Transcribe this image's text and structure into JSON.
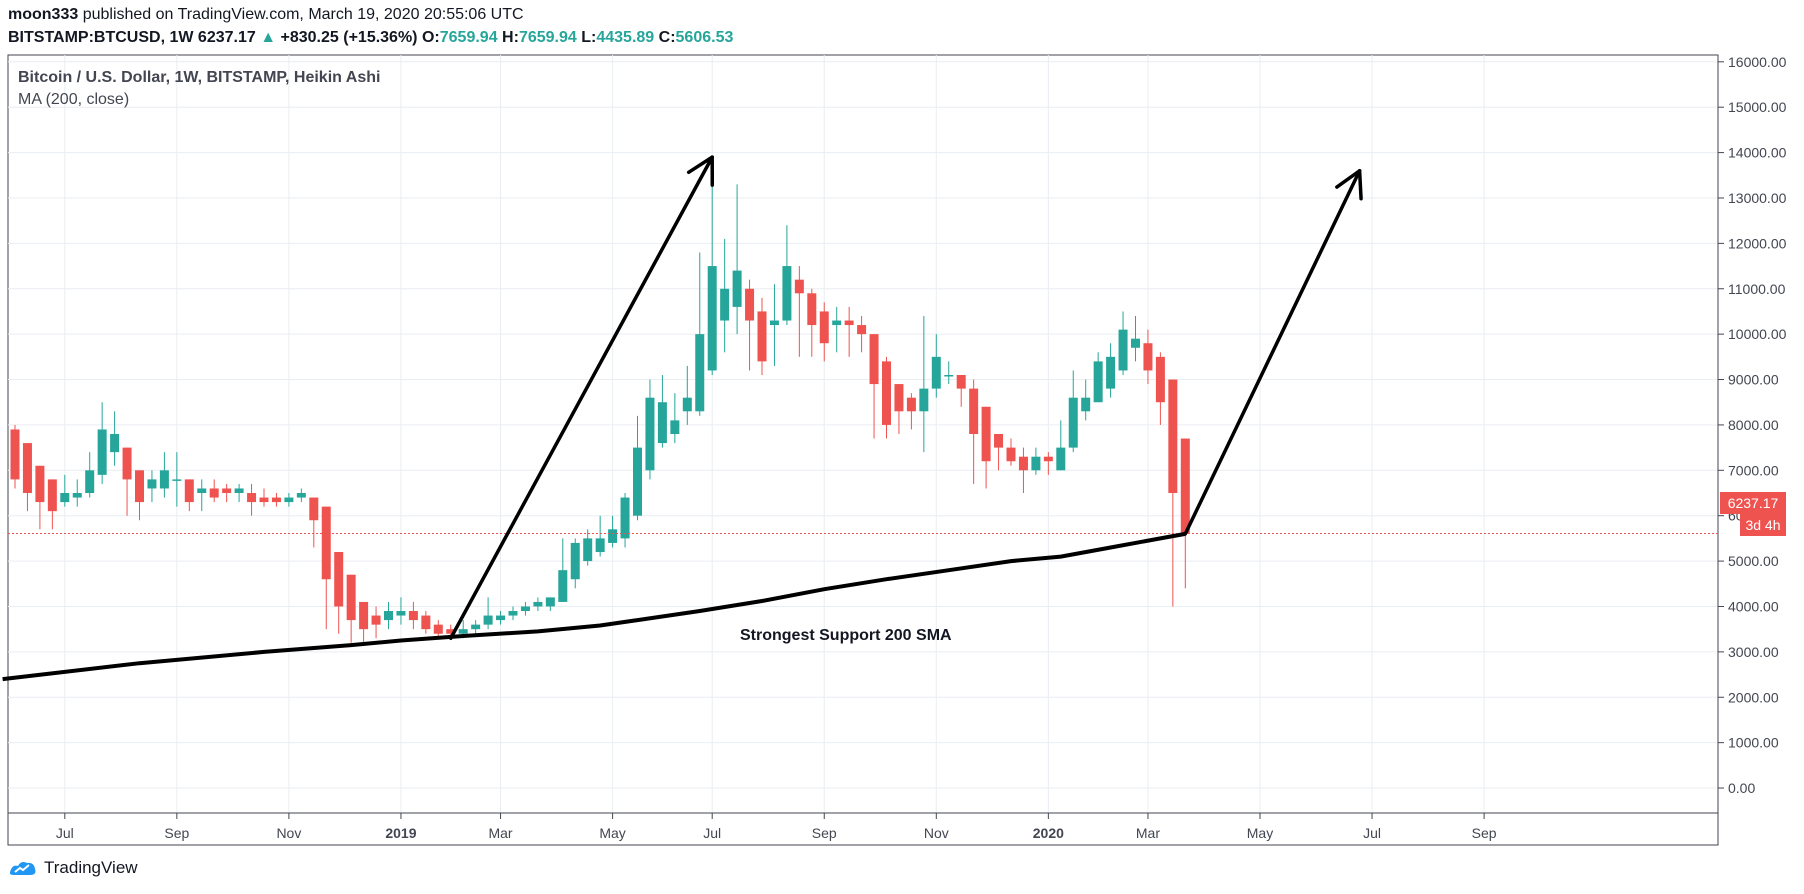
{
  "header": {
    "publisher": "moon333",
    "published_text": " published on TradingView.com, March 19, 2020 20:55:06 UTC",
    "symbol": "BITSTAMP:BTCUSD, 1W",
    "price": "6237.17",
    "change": "+830.25 (+15.36%)",
    "o_label": "O:",
    "o_value": "7659.94",
    "h_label": "H:",
    "h_value": "7659.94",
    "l_label": "L:",
    "l_value": "4435.89",
    "c_label": "C:",
    "c_value": "5606.53"
  },
  "legend": {
    "title": "Bitcoin / U.S. Dollar, 1W, BITSTAMP, Heikin Ashi",
    "ma": "MA (200, close)"
  },
  "price_label": {
    "price": "6237.17",
    "countdown": "3d 4h"
  },
  "annotation": "Strongest Support 200 SMA",
  "footer": {
    "brand": "TradingView"
  },
  "colors": {
    "up": "#26a69a",
    "down": "#ef5350",
    "ma": "#000000",
    "grid": "#e9eef2",
    "price_line": "#ef5350"
  },
  "chart_data": {
    "type": "candlestick",
    "ylim": [
      -550,
      16150
    ],
    "y_ticks": [
      "16000.00",
      "15000.00",
      "14000.00",
      "13000.00",
      "12000.00",
      "11000.00",
      "10000.00",
      "9000.00",
      "8000.00",
      "7000.00",
      "6000.00",
      "5000.00",
      "4000.00",
      "3000.00",
      "2000.00",
      "1000.00",
      "0.00"
    ],
    "x_ticks": [
      {
        "label": "Jul",
        "week": 4
      },
      {
        "label": "Sep",
        "week": 13
      },
      {
        "label": "Nov",
        "week": 22
      },
      {
        "label": "2019",
        "week": 31,
        "bold": true
      },
      {
        "label": "Mar",
        "week": 39
      },
      {
        "label": "May",
        "week": 48
      },
      {
        "label": "Jul",
        "week": 56
      },
      {
        "label": "Sep",
        "week": 65
      },
      {
        "label": "Nov",
        "week": 74
      },
      {
        "label": "2020",
        "week": 83,
        "bold": true
      },
      {
        "label": "Mar",
        "week": 91
      },
      {
        "label": "May",
        "week": 100
      },
      {
        "label": "Jul",
        "week": 109
      },
      {
        "label": "Sep",
        "week": 118
      }
    ],
    "candles": [
      [
        7900,
        6800,
        8000,
        6600
      ],
      [
        7600,
        6500,
        7600,
        6100
      ],
      [
        7100,
        6300,
        7100,
        5700
      ],
      [
        6800,
        6100,
        6800,
        5700
      ],
      [
        6300,
        6500,
        6900,
        6200
      ],
      [
        6400,
        6500,
        6800,
        6200
      ],
      [
        6500,
        7000,
        7400,
        6400
      ],
      [
        6900,
        7900,
        8500,
        6700
      ],
      [
        7400,
        7800,
        8300,
        7100
      ],
      [
        7500,
        6800,
        7500,
        6000
      ],
      [
        7000,
        6300,
        7000,
        5900
      ],
      [
        6600,
        6800,
        7000,
        6300
      ],
      [
        6600,
        7000,
        7400,
        6400
      ],
      [
        6800,
        6800,
        7400,
        6200
      ],
      [
        6800,
        6300,
        6800,
        6100
      ],
      [
        6500,
        6600,
        6800,
        6100
      ],
      [
        6600,
        6400,
        6800,
        6300
      ],
      [
        6600,
        6500,
        6700,
        6300
      ],
      [
        6500,
        6600,
        6700,
        6300
      ],
      [
        6500,
        6300,
        6700,
        6000
      ],
      [
        6400,
        6300,
        6600,
        6200
      ],
      [
        6400,
        6300,
        6500,
        6200
      ],
      [
        6300,
        6400,
        6500,
        6200
      ],
      [
        6400,
        6500,
        6600,
        6300
      ],
      [
        6400,
        5900,
        6400,
        5300
      ],
      [
        6200,
        4600,
        6200,
        3500
      ],
      [
        5200,
        4000,
        5200,
        3400
      ],
      [
        4700,
        3700,
        4700,
        3200
      ],
      [
        4100,
        3500,
        4100,
        3200
      ],
      [
        3800,
        3600,
        4000,
        3300
      ],
      [
        3700,
        3900,
        4100,
        3500
      ],
      [
        3800,
        3900,
        4200,
        3600
      ],
      [
        3900,
        3700,
        4100,
        3500
      ],
      [
        3800,
        3500,
        3900,
        3400
      ],
      [
        3600,
        3400,
        3700,
        3300
      ],
      [
        3500,
        3400,
        3600,
        3300
      ],
      [
        3400,
        3500,
        3700,
        3300
      ],
      [
        3500,
        3600,
        3700,
        3400
      ],
      [
        3600,
        3800,
        4200,
        3500
      ],
      [
        3700,
        3800,
        3900,
        3600
      ],
      [
        3800,
        3900,
        4000,
        3700
      ],
      [
        3900,
        4000,
        4100,
        3800
      ],
      [
        4000,
        4100,
        4200,
        3900
      ],
      [
        4000,
        4200,
        4200,
        3900
      ],
      [
        4100,
        4800,
        5500,
        4100
      ],
      [
        4600,
        5400,
        5500,
        4400
      ],
      [
        5000,
        5500,
        5700,
        4900
      ],
      [
        5200,
        5500,
        6000,
        5100
      ],
      [
        5400,
        5700,
        6000,
        5300
      ],
      [
        5500,
        6400,
        6500,
        5300
      ],
      [
        6000,
        7500,
        8200,
        5900
      ],
      [
        7000,
        8600,
        9000,
        6800
      ],
      [
        7600,
        8500,
        9100,
        7500
      ],
      [
        7800,
        8100,
        8700,
        7600
      ],
      [
        8300,
        8600,
        9300,
        8000
      ],
      [
        8300,
        10000,
        11800,
        8200
      ],
      [
        9200,
        11500,
        13900,
        9100
      ],
      [
        10300,
        11000,
        12100,
        9600
      ],
      [
        10600,
        11400,
        13300,
        10000
      ],
      [
        11000,
        10300,
        11200,
        9200
      ],
      [
        10500,
        9400,
        10800,
        9100
      ],
      [
        10200,
        10300,
        11100,
        9300
      ],
      [
        10300,
        11500,
        12400,
        10200
      ],
      [
        11200,
        10900,
        11500,
        9500
      ],
      [
        10900,
        10200,
        11000,
        9500
      ],
      [
        10500,
        9800,
        10700,
        9400
      ],
      [
        10200,
        10300,
        10600,
        9600
      ],
      [
        10300,
        10200,
        10600,
        9500
      ],
      [
        10200,
        10000,
        10400,
        9600
      ],
      [
        10000,
        8900,
        10000,
        7700
      ],
      [
        9400,
        8000,
        9500,
        7700
      ],
      [
        8900,
        8300,
        8900,
        7800
      ],
      [
        8600,
        8300,
        8700,
        7900
      ],
      [
        8300,
        8800,
        10400,
        7400
      ],
      [
        8800,
        9500,
        10000,
        8600
      ],
      [
        9100,
        9100,
        9400,
        8900
      ],
      [
        9100,
        8800,
        9100,
        8400
      ],
      [
        8800,
        7800,
        9000,
        6700
      ],
      [
        8400,
        7200,
        8400,
        6600
      ],
      [
        7800,
        7500,
        7800,
        7000
      ],
      [
        7500,
        7200,
        7700,
        7100
      ],
      [
        7300,
        7000,
        7500,
        6500
      ],
      [
        7000,
        7300,
        7500,
        6900
      ],
      [
        7300,
        7200,
        7400,
        6900
      ],
      [
        7000,
        7500,
        8100,
        7000
      ],
      [
        7500,
        8600,
        9200,
        7400
      ],
      [
        8300,
        8600,
        9000,
        8100
      ],
      [
        8500,
        9400,
        9600,
        8500
      ],
      [
        8800,
        9500,
        9800,
        8600
      ],
      [
        9200,
        10100,
        10500,
        9100
      ],
      [
        9700,
        9900,
        10400,
        9400
      ],
      [
        9800,
        9200,
        10100,
        8900
      ],
      [
        9500,
        8500,
        9600,
        8000
      ],
      [
        9000,
        6500,
        9000,
        4000
      ],
      [
        7700,
        5600,
        7700,
        4400
      ]
    ],
    "ma_200": [
      [
        -1,
        2400
      ],
      [
        10,
        2750
      ],
      [
        20,
        3000
      ],
      [
        27,
        3150
      ],
      [
        31,
        3250
      ],
      [
        36,
        3350
      ],
      [
        42,
        3450
      ],
      [
        47,
        3580
      ],
      [
        50,
        3700
      ],
      [
        55,
        3900
      ],
      [
        60,
        4120
      ],
      [
        65,
        4380
      ],
      [
        70,
        4600
      ],
      [
        75,
        4800
      ],
      [
        80,
        5000
      ],
      [
        84,
        5100
      ],
      [
        88,
        5300
      ],
      [
        92,
        5500
      ],
      [
        94,
        5600
      ]
    ],
    "arrows": [
      {
        "from": [
          35,
          3300
        ],
        "to": [
          56,
          13900
        ]
      },
      {
        "from": [
          94,
          5600
        ],
        "to": [
          108,
          13600
        ]
      }
    ],
    "last_price_line": 5606.53
  }
}
